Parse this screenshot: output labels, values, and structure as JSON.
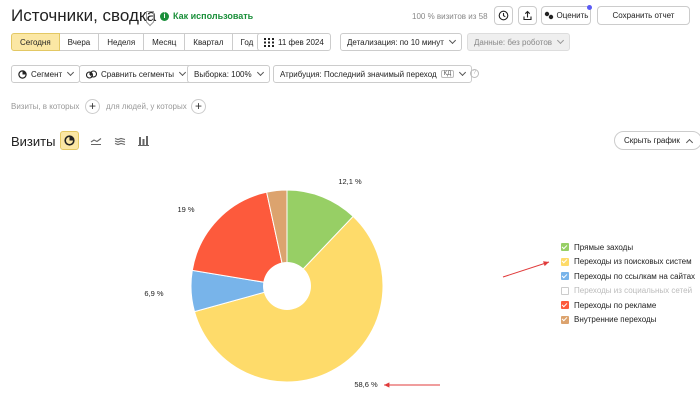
{
  "header": {
    "title": "Источники, сводка",
    "help_label": "Как использовать",
    "visits_info": "100 % визитов из 58",
    "rate_label": "Оценить",
    "save_label": "Сохранить отчет"
  },
  "period": {
    "options": [
      "Сегодня",
      "Вчера",
      "Неделя",
      "Месяц",
      "Квартал",
      "Год"
    ],
    "selected": "Сегодня",
    "date": "11 фев 2024",
    "detail": "Детализация: по 10 минут",
    "robots": "Данные: без роботов"
  },
  "segment_row": {
    "segment": "Сегмент",
    "compare": "Сравнить сегменты",
    "sample": "Выборка: 100%",
    "attribution": "Атрибуция: Последний значимый переход",
    "attribution_badge": "КД"
  },
  "filters": {
    "visits_label": "Визиты, в которых",
    "people_label": "для людей, у которых"
  },
  "chart_header": {
    "title": "Визиты",
    "hide_label": "Скрыть график"
  },
  "colors": {
    "accent": "#fbe7a4",
    "green": "#97cf65",
    "yellow": "#fedb6a",
    "blue": "#78b4ea",
    "red": "#fd5a3c",
    "tan": "#dca36e",
    "arrow": "#e03b3b"
  },
  "chart_data": {
    "type": "pie",
    "title": "",
    "categories": [
      "Прямые заходы",
      "Переходы из поисковых систем",
      "Переходы по ссылкам на сайтах",
      "Переходы из социальных сетей",
      "Переходы по рекламе",
      "Внутренние переходы"
    ],
    "values": [
      12.1,
      58.6,
      6.9,
      0,
      19,
      3.4
    ],
    "labels": [
      "12,1 %",
      "58,6 %",
      "6,9 %",
      "",
      "19 %",
      ""
    ],
    "colors": [
      "#97cf65",
      "#fedb6a",
      "#78b4ea",
      "#cccccc",
      "#fd5a3c",
      "#dca36e"
    ],
    "legend_enabled": [
      true,
      true,
      true,
      false,
      true,
      true
    ],
    "legend_position": "right",
    "donut": true
  }
}
